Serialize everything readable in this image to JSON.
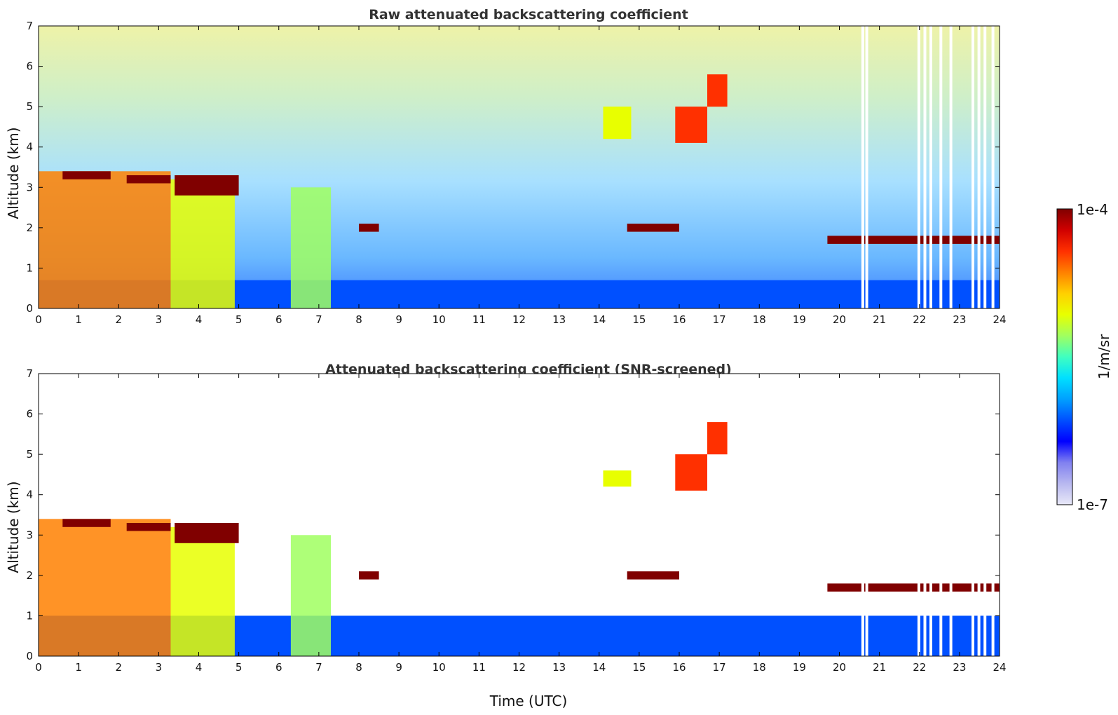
{
  "chart_data": [
    {
      "type": "heatmap",
      "title": "Raw attenuated backscattering coefficient",
      "xlabel": "",
      "ylabel": "Altitude (km)",
      "xlim": [
        0,
        24
      ],
      "ylim": [
        0,
        7
      ],
      "xticks": [
        "0",
        "1",
        "2",
        "3",
        "4",
        "5",
        "6",
        "7",
        "8",
        "9",
        "10",
        "11",
        "12",
        "13",
        "14",
        "15",
        "16",
        "17",
        "18",
        "19",
        "20",
        "21",
        "22",
        "23",
        "24"
      ],
      "yticks": [
        "0",
        "1",
        "2",
        "3",
        "4",
        "5",
        "6",
        "7"
      ],
      "screened": false,
      "data_gaps_utc": [
        20.55,
        20.65,
        21.95,
        22.1,
        22.25,
        22.5,
        22.75,
        23.3,
        23.45,
        23.6,
        23.8
      ],
      "features": [
        {
          "kind": "boundary_layer",
          "x": [
            0,
            24
          ],
          "y": [
            0,
            0.7
          ],
          "level": 0.28
        },
        {
          "kind": "precipitation",
          "x": [
            0,
            3.3
          ],
          "y": [
            0,
            3.4
          ],
          "level": 0.75
        },
        {
          "kind": "precipitation",
          "x": [
            3.3,
            4.9
          ],
          "y": [
            0,
            3.2
          ],
          "level": 0.6
        },
        {
          "kind": "cloud_base",
          "x": [
            0.6,
            1.8
          ],
          "y": [
            3.2,
            3.4
          ],
          "level": 0.95
        },
        {
          "kind": "cloud_base",
          "x": [
            2.2,
            3.3
          ],
          "y": [
            3.1,
            3.3
          ],
          "level": 0.95
        },
        {
          "kind": "cloud_base",
          "x": [
            3.4,
            5.0
          ],
          "y": [
            2.8,
            3.3
          ],
          "level": 0.95
        },
        {
          "kind": "virga",
          "x": [
            6.3,
            7.3
          ],
          "y": [
            0,
            3.0
          ],
          "level": 0.55
        },
        {
          "kind": "cloud",
          "x": [
            8.0,
            8.5
          ],
          "y": [
            1.9,
            2.1
          ],
          "level": 0.95
        },
        {
          "kind": "cloud",
          "x": [
            14.7,
            16.0
          ],
          "y": [
            1.9,
            2.1
          ],
          "level": 0.95
        },
        {
          "kind": "cirrus",
          "x": [
            14.1,
            14.8
          ],
          "y": [
            4.2,
            5.0
          ],
          "level": 0.6
        },
        {
          "kind": "cirrus",
          "x": [
            15.9,
            16.7
          ],
          "y": [
            4.1,
            5.0
          ],
          "level": 0.8
        },
        {
          "kind": "cirrus",
          "x": [
            16.7,
            17.2
          ],
          "y": [
            5.0,
            5.8
          ],
          "level": 0.85
        },
        {
          "kind": "cloud_base",
          "x": [
            19.7,
            24
          ],
          "y": [
            1.6,
            1.8
          ],
          "level": 0.95
        }
      ]
    },
    {
      "type": "heatmap",
      "title": "Attenuated backscattering coefficient (SNR-screened)",
      "xlabel": "Time (UTC)",
      "ylabel": "Altitude (km)",
      "xlim": [
        0,
        24
      ],
      "ylim": [
        0,
        7
      ],
      "xticks": [
        "0",
        "1",
        "2",
        "3",
        "4",
        "5",
        "6",
        "7",
        "8",
        "9",
        "10",
        "11",
        "12",
        "13",
        "14",
        "15",
        "16",
        "17",
        "18",
        "19",
        "20",
        "21",
        "22",
        "23",
        "24"
      ],
      "yticks": [
        "0",
        "1",
        "2",
        "3",
        "4",
        "5",
        "6",
        "7"
      ],
      "screened": true,
      "data_gaps_utc": [
        20.55,
        20.65,
        21.95,
        22.1,
        22.25,
        22.5,
        22.75,
        23.3,
        23.45,
        23.6,
        23.8
      ],
      "features": [
        {
          "kind": "boundary_layer",
          "x": [
            0,
            24
          ],
          "y": [
            0,
            1.0
          ],
          "level": 0.28
        },
        {
          "kind": "precipitation",
          "x": [
            0,
            3.3
          ],
          "y": [
            0,
            3.4
          ],
          "level": 0.75
        },
        {
          "kind": "precipitation",
          "x": [
            3.3,
            4.9
          ],
          "y": [
            0,
            3.2
          ],
          "level": 0.6
        },
        {
          "kind": "cloud_base",
          "x": [
            0.6,
            1.8
          ],
          "y": [
            3.2,
            3.4
          ],
          "level": 0.95
        },
        {
          "kind": "cloud_base",
          "x": [
            2.2,
            3.3
          ],
          "y": [
            3.1,
            3.3
          ],
          "level": 0.95
        },
        {
          "kind": "cloud_base",
          "x": [
            3.4,
            5.0
          ],
          "y": [
            2.8,
            3.3
          ],
          "level": 0.95
        },
        {
          "kind": "virga",
          "x": [
            6.3,
            7.3
          ],
          "y": [
            0,
            3.0
          ],
          "level": 0.55
        },
        {
          "kind": "cloud",
          "x": [
            8.0,
            8.5
          ],
          "y": [
            1.9,
            2.1
          ],
          "level": 1.0
        },
        {
          "kind": "cloud",
          "x": [
            14.7,
            16.0
          ],
          "y": [
            1.9,
            2.1
          ],
          "level": 1.0
        },
        {
          "kind": "cirrus",
          "x": [
            14.1,
            14.8
          ],
          "y": [
            4.2,
            4.6
          ],
          "level": 0.6
        },
        {
          "kind": "cirrus",
          "x": [
            15.9,
            16.7
          ],
          "y": [
            4.1,
            5.0
          ],
          "level": 0.8
        },
        {
          "kind": "cirrus",
          "x": [
            16.7,
            17.2
          ],
          "y": [
            5.0,
            5.8
          ],
          "level": 0.85
        },
        {
          "kind": "cloud_base",
          "x": [
            19.7,
            24
          ],
          "y": [
            1.6,
            1.8
          ],
          "level": 1.0
        }
      ]
    }
  ],
  "colorbar": {
    "label": "1/m/sr",
    "max_label": "1e-4",
    "min_label": "1e-7",
    "colors": [
      "#e8e8f8",
      "#b8b8f0",
      "#8080f0",
      "#0000ff",
      "#0050ff",
      "#00a0ff",
      "#00e0ff",
      "#40ffc0",
      "#a0ff60",
      "#e8ff00",
      "#ffd000",
      "#ff8000",
      "#ff3000",
      "#d00000",
      "#800000"
    ]
  }
}
